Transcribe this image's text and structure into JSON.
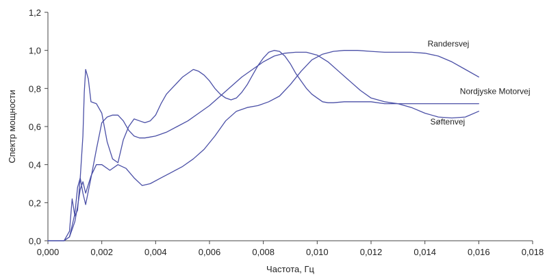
{
  "chart_data": {
    "type": "line",
    "title": "",
    "xlabel": "Частота, Гц",
    "ylabel": "Спектр мощности",
    "xlim": [
      0,
      0.018
    ],
    "ylim": [
      0,
      1.2
    ],
    "x_ticks": [
      "0,000",
      "0,002",
      "0,004",
      "0,006",
      "0,008",
      "0,010",
      "0,012",
      "0,014",
      "0,016",
      "0,018"
    ],
    "y_ticks": [
      "0,0",
      "0,2",
      "0,4",
      "0,6",
      "0,8",
      "1,0",
      "1,2"
    ],
    "grid": false,
    "line_color": "#4a4fa6",
    "series": [
      {
        "name": "Randersvej",
        "x": [
          0,
          0.0006,
          0.0008,
          0.001,
          0.0011,
          0.0012,
          0.0013,
          0.0014,
          0.0016,
          0.0018,
          0.002,
          0.0023,
          0.0026,
          0.0029,
          0.0032,
          0.0035,
          0.0038,
          0.0042,
          0.0046,
          0.005,
          0.0054,
          0.0058,
          0.0062,
          0.0066,
          0.007,
          0.0074,
          0.0078,
          0.0082,
          0.0086,
          0.009,
          0.0094,
          0.0098,
          0.0102,
          0.0106,
          0.011,
          0.0115,
          0.012,
          0.0125,
          0.013,
          0.0135,
          0.014,
          0.0145,
          0.015,
          0.0155,
          0.016
        ],
        "y": [
          0,
          0,
          0.02,
          0.1,
          0.18,
          0.27,
          0.31,
          0.25,
          0.34,
          0.4,
          0.4,
          0.37,
          0.4,
          0.38,
          0.33,
          0.29,
          0.3,
          0.33,
          0.36,
          0.39,
          0.43,
          0.48,
          0.55,
          0.63,
          0.68,
          0.7,
          0.71,
          0.73,
          0.76,
          0.82,
          0.89,
          0.95,
          0.98,
          0.995,
          1.0,
          1.0,
          0.995,
          0.99,
          0.99,
          0.99,
          0.985,
          0.97,
          0.94,
          0.9,
          0.86
        ]
      },
      {
        "name": "Nordjyske Motorvej",
        "x": [
          0,
          0.0006,
          0.0008,
          0.0009,
          0.001,
          0.0011,
          0.0012,
          0.0013,
          0.0014,
          0.0016,
          0.0018,
          0.002,
          0.0022,
          0.0024,
          0.0026,
          0.0028,
          0.003,
          0.0032,
          0.0034,
          0.0036,
          0.0038,
          0.004,
          0.0044,
          0.0048,
          0.0052,
          0.0056,
          0.006,
          0.0064,
          0.0068,
          0.0072,
          0.0076,
          0.008,
          0.0084,
          0.0088,
          0.0092,
          0.0096,
          0.01,
          0.0104,
          0.0108,
          0.0112,
          0.0116,
          0.012,
          0.0125,
          0.013,
          0.0135,
          0.014,
          0.0145,
          0.015,
          0.0155,
          0.016
        ],
        "y": [
          0,
          0,
          0.05,
          0.22,
          0.13,
          0.16,
          0.33,
          0.25,
          0.19,
          0.33,
          0.48,
          0.62,
          0.65,
          0.66,
          0.66,
          0.63,
          0.58,
          0.55,
          0.54,
          0.54,
          0.545,
          0.55,
          0.57,
          0.6,
          0.63,
          0.67,
          0.71,
          0.76,
          0.81,
          0.86,
          0.9,
          0.94,
          0.97,
          0.985,
          0.99,
          0.99,
          0.975,
          0.94,
          0.89,
          0.84,
          0.79,
          0.75,
          0.73,
          0.72,
          0.72,
          0.72,
          0.72,
          0.72,
          0.72,
          0.72
        ]
      },
      {
        "name": "Søftenvej",
        "x": [
          0,
          0.0006,
          0.0008,
          0.001,
          0.0011,
          0.0012,
          0.0013,
          0.00135,
          0.0014,
          0.0015,
          0.0016,
          0.0018,
          0.002,
          0.0022,
          0.0024,
          0.0026,
          0.0028,
          0.003,
          0.0032,
          0.0034,
          0.0036,
          0.0038,
          0.004,
          0.0042,
          0.0044,
          0.0046,
          0.0048,
          0.005,
          0.0052,
          0.0054,
          0.0056,
          0.0058,
          0.006,
          0.0062,
          0.0064,
          0.0066,
          0.0068,
          0.007,
          0.0072,
          0.0074,
          0.0076,
          0.0078,
          0.008,
          0.0082,
          0.0084,
          0.0086,
          0.0088,
          0.009,
          0.0092,
          0.0094,
          0.0096,
          0.0098,
          0.01,
          0.0102,
          0.0104,
          0.0106,
          0.011,
          0.0115,
          0.012,
          0.0125,
          0.013,
          0.0135,
          0.014,
          0.0145,
          0.015,
          0.0155,
          0.016
        ],
        "y": [
          0,
          0,
          0.02,
          0.14,
          0.28,
          0.33,
          0.55,
          0.78,
          0.9,
          0.85,
          0.73,
          0.72,
          0.67,
          0.52,
          0.43,
          0.41,
          0.53,
          0.6,
          0.64,
          0.63,
          0.62,
          0.63,
          0.66,
          0.72,
          0.77,
          0.8,
          0.83,
          0.86,
          0.88,
          0.9,
          0.89,
          0.87,
          0.84,
          0.8,
          0.77,
          0.75,
          0.74,
          0.75,
          0.78,
          0.82,
          0.87,
          0.92,
          0.96,
          0.99,
          1.0,
          0.995,
          0.97,
          0.93,
          0.88,
          0.84,
          0.8,
          0.77,
          0.75,
          0.73,
          0.725,
          0.725,
          0.73,
          0.73,
          0.73,
          0.72,
          0.72,
          0.7,
          0.67,
          0.65,
          0.645,
          0.65,
          0.68
        ]
      }
    ],
    "annotations": [
      {
        "text": "Randersvej",
        "x": 0.0141,
        "y": 1.02
      },
      {
        "text": "Nordjyske Motorvej",
        "x": 0.0153,
        "y": 0.77
      },
      {
        "text": "Søftenvej",
        "x": 0.0142,
        "y": 0.61
      }
    ]
  }
}
